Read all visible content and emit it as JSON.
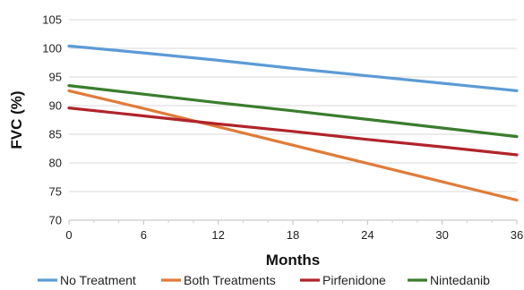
{
  "chart_data": {
    "type": "line",
    "title": "",
    "xlabel": "Months",
    "ylabel": "FVC (%)",
    "xlim": [
      0,
      36
    ],
    "ylim": [
      70,
      105
    ],
    "xticks": [
      0,
      6,
      12,
      18,
      24,
      30,
      36
    ],
    "yticks": [
      70,
      75,
      80,
      85,
      90,
      95,
      100,
      105
    ],
    "grid": "horizontal",
    "legend": "bottom",
    "x": [
      0,
      6,
      12,
      18,
      24,
      30,
      36
    ],
    "series": [
      {
        "name": "No Treatment",
        "color": "#5b9bd5",
        "values": [
          100.4,
          99.2,
          97.9,
          96.5,
          95.2,
          93.9,
          92.6
        ]
      },
      {
        "name": "Both Treatments",
        "color": "#e07b39",
        "values": [
          92.6,
          89.5,
          86.3,
          83.1,
          79.9,
          76.7,
          73.5
        ]
      },
      {
        "name": "Pirfenidone",
        "color": "#b0242a",
        "values": [
          89.6,
          88.2,
          86.8,
          85.5,
          84.1,
          82.8,
          81.4
        ]
      },
      {
        "name": "Nintedanib",
        "color": "#3a7d2c",
        "values": [
          93.5,
          92.0,
          90.5,
          89.1,
          87.6,
          86.1,
          84.6
        ]
      }
    ]
  }
}
